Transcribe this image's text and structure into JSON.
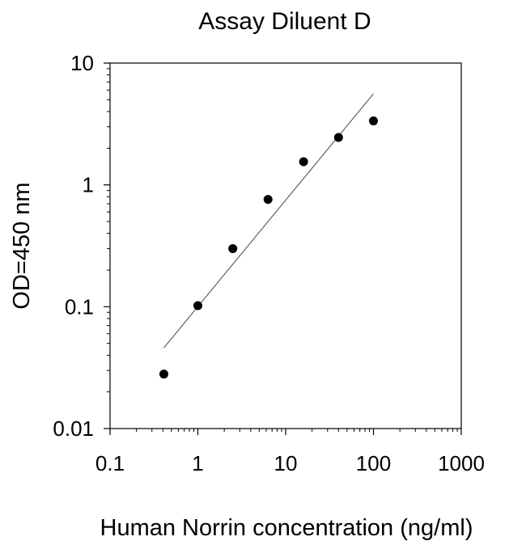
{
  "chart_data": {
    "type": "scatter",
    "title": "Assay Diluent D",
    "xlabel": "Human Norrin concentration (ng/ml)",
    "ylabel": "OD=450 nm",
    "xscale": "log",
    "yscale": "log",
    "xlim": [
      0.1,
      1000
    ],
    "ylim": [
      0.01,
      10
    ],
    "xticks": [
      0.1,
      1,
      10,
      100,
      1000
    ],
    "xtick_labels": [
      "0.1",
      "1",
      "10",
      "100",
      "1000"
    ],
    "yticks": [
      0.01,
      0.1,
      1,
      10
    ],
    "ytick_labels": [
      "0.01",
      "0.1",
      "1",
      "10"
    ],
    "grid": false,
    "legend": "none",
    "series": [
      {
        "points": [
          {
            "x": 0.41,
            "y": 0.028
          },
          {
            "x": 1,
            "y": 0.102
          },
          {
            "x": 2.5,
            "y": 0.3
          },
          {
            "x": 6.3,
            "y": 0.76
          },
          {
            "x": 16,
            "y": 1.55
          },
          {
            "x": 40,
            "y": 2.45
          },
          {
            "x": 100,
            "y": 3.35
          }
        ]
      }
    ],
    "fit_line": {
      "x": [
        0.41,
        100
      ],
      "y": [
        0.046,
        5.6
      ]
    },
    "colors": {
      "points": "#000000",
      "line": "#555555",
      "axes": "#000000"
    }
  }
}
